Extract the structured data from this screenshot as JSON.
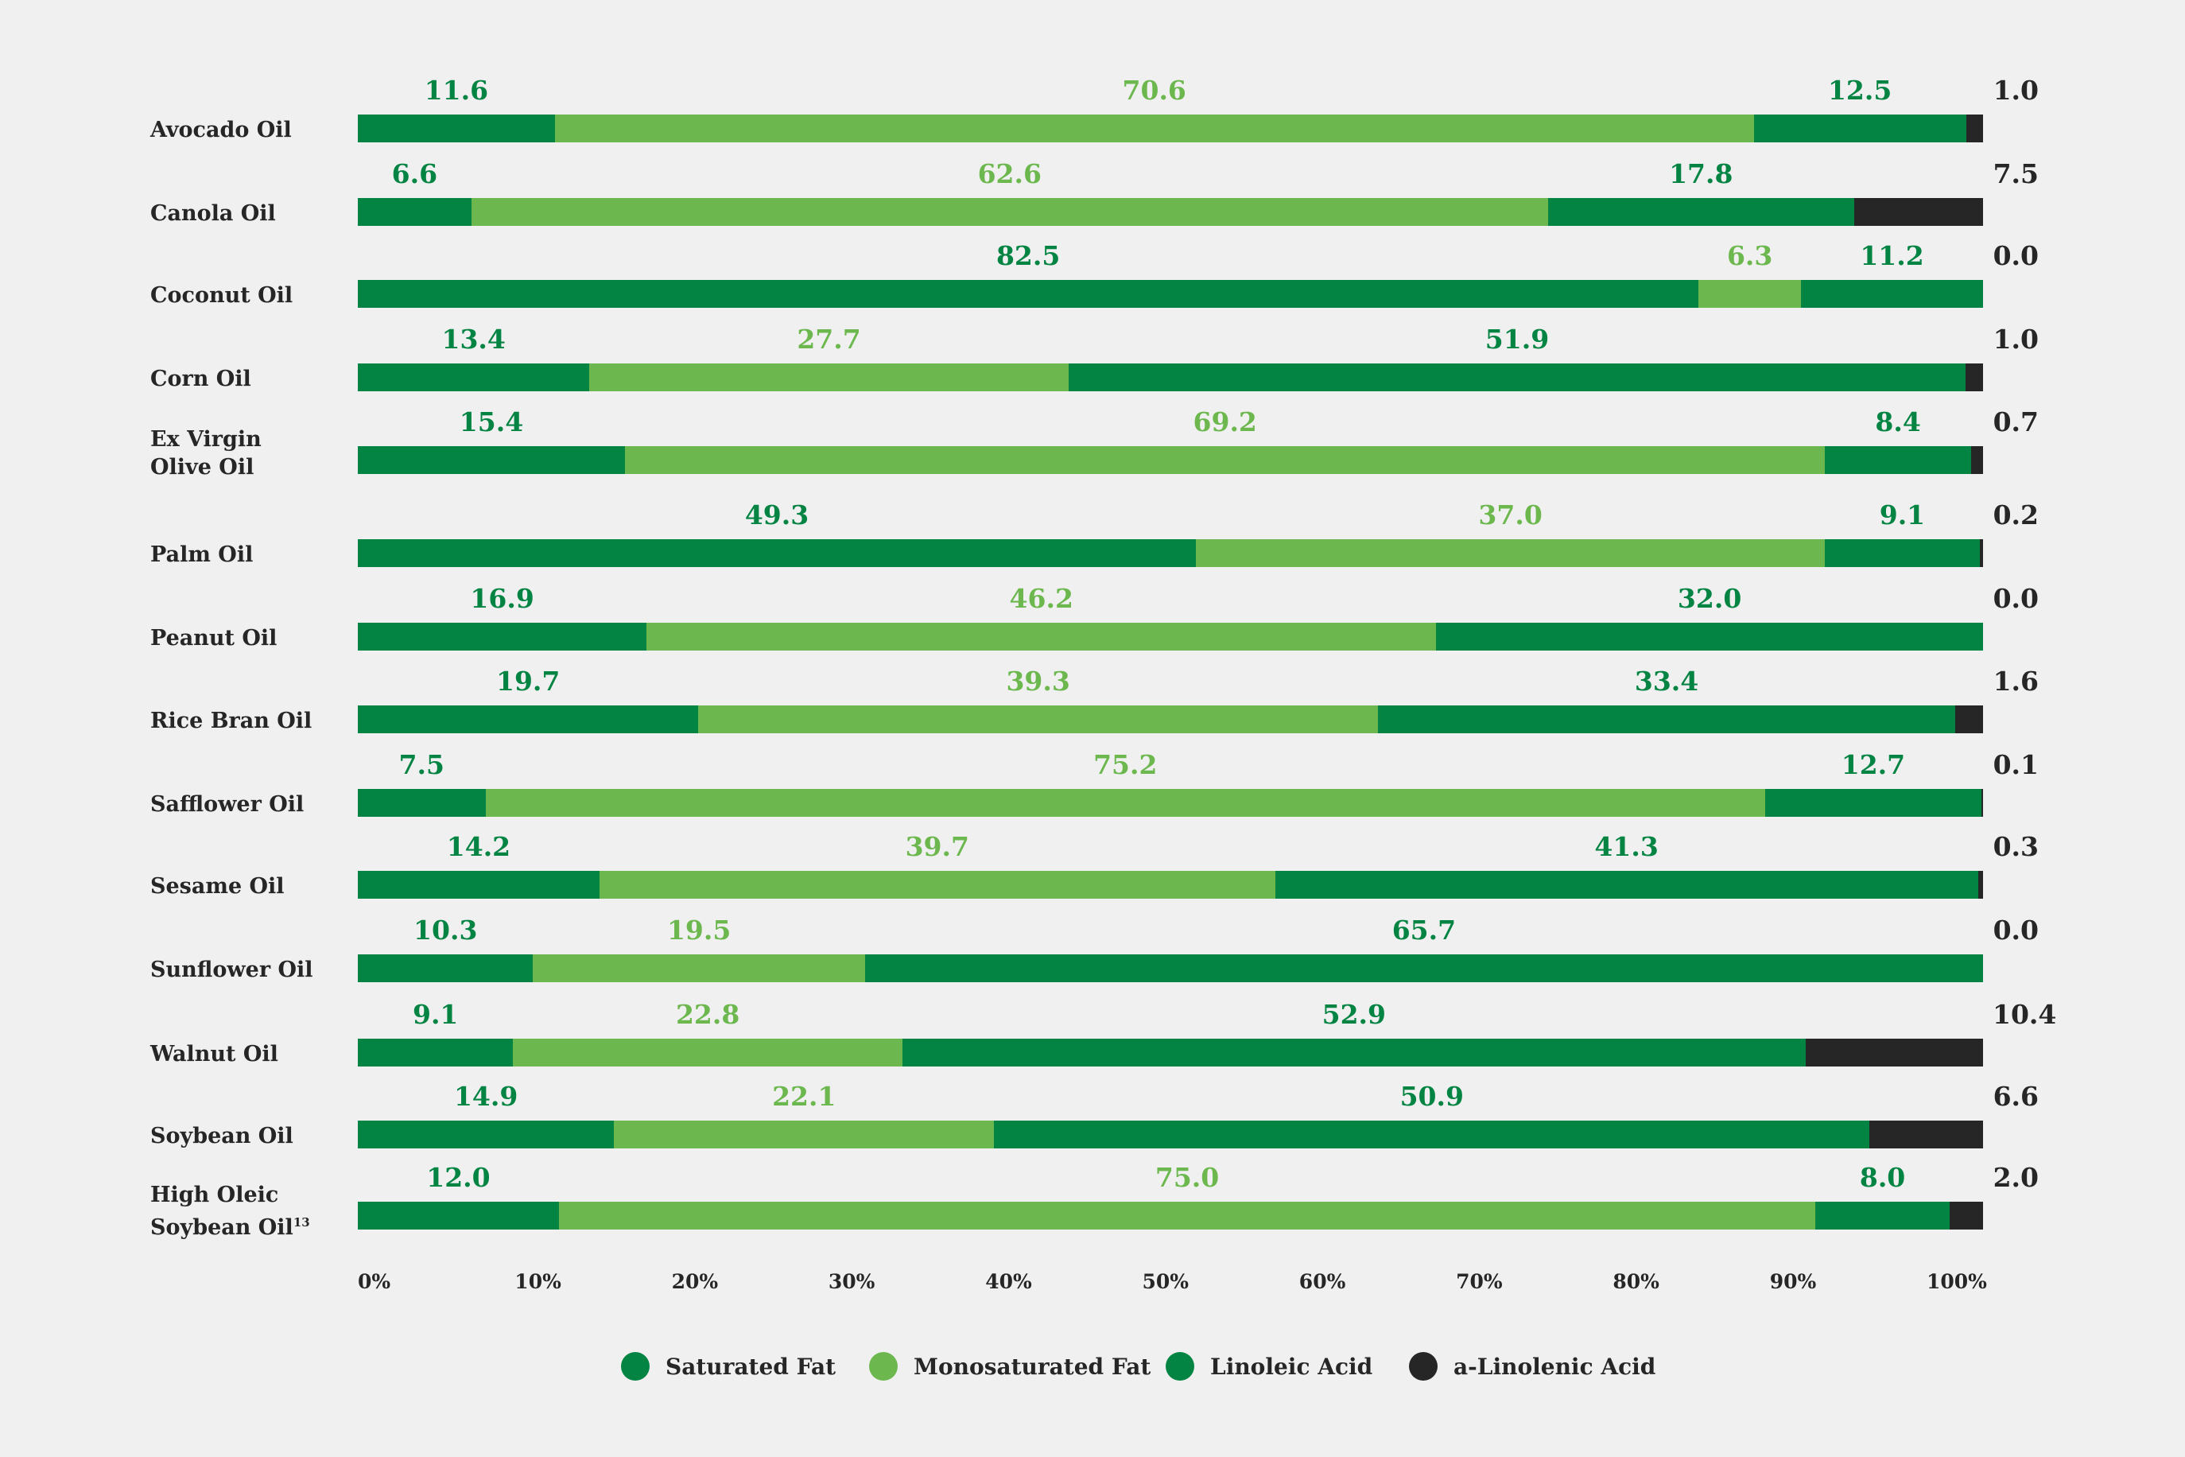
{
  "chart_data": {
    "type": "bar",
    "orientation": "horizontal-stacked-100",
    "title": "",
    "xlabel": "",
    "ylabel": "",
    "xlim": [
      0,
      100
    ],
    "x_ticks": [
      "0%",
      "10%",
      "20%",
      "30%",
      "40%",
      "50%",
      "60%",
      "70%",
      "80%",
      "90%",
      "100%"
    ],
    "legend_position": "bottom",
    "categories": [
      {
        "label": "Avocado Oil"
      },
      {
        "label": "Canola Oil"
      },
      {
        "label": "Coconut Oil"
      },
      {
        "label": "Corn Oil"
      },
      {
        "label": "Ex Virgin",
        "label2": "Olive Oil"
      },
      {
        "label": "Palm Oil"
      },
      {
        "label": "Peanut Oil"
      },
      {
        "label": "Rice Bran Oil"
      },
      {
        "label": "Safflower Oil"
      },
      {
        "label": "Sesame Oil"
      },
      {
        "label": "Sunflower Oil"
      },
      {
        "label": "Walnut Oil"
      },
      {
        "label": "Soybean Oil"
      },
      {
        "label": "High Oleic",
        "label2": "Soybean Oil",
        "footnote": "13"
      }
    ],
    "series": [
      {
        "name": "Saturated Fat",
        "color": "#038443",
        "label_color": "#038443",
        "values": [
          11.6,
          6.6,
          82.5,
          13.4,
          15.4,
          49.3,
          16.9,
          19.7,
          7.5,
          14.2,
          10.3,
          9.1,
          14.9,
          12.0
        ],
        "labels": [
          "11.6",
          "6.6",
          "82.5",
          "13.4",
          "15.4",
          "49.3",
          "16.9",
          "19.7",
          "7.5",
          "14.2",
          "10.3",
          "9.1",
          "14.9",
          "12.0"
        ]
      },
      {
        "name": "Monosaturated Fat",
        "color": "#6cb84e",
        "label_color": "#6cb84e",
        "values": [
          70.6,
          62.6,
          6.3,
          27.7,
          69.2,
          37.0,
          46.2,
          39.3,
          75.2,
          39.7,
          19.5,
          22.8,
          22.1,
          75.0
        ],
        "labels": [
          "70.6",
          "62.6",
          "6.3",
          "27.7",
          "69.2",
          "37.0",
          "46.2",
          "39.3",
          "75.2",
          "39.7",
          "19.5",
          "22.8",
          "22.1",
          "75.0"
        ]
      },
      {
        "name": "Linoleic Acid",
        "color": "#038443",
        "label_color": "#038443",
        "values": [
          12.5,
          17.8,
          11.2,
          51.9,
          8.4,
          9.1,
          32.0,
          33.4,
          12.7,
          41.3,
          65.7,
          52.9,
          50.9,
          8.0
        ],
        "labels": [
          "12.5",
          "17.8",
          "11.2",
          "51.9",
          "8.4",
          "9.1",
          "32.0",
          "33.4",
          "12.7",
          "41.3",
          "65.7",
          "52.9",
          "50.9",
          "8.0"
        ]
      },
      {
        "name": "a-Linolenic Acid",
        "color": "#262626",
        "label_color": "#262626",
        "values": [
          1.0,
          7.5,
          0.0,
          1.0,
          0.7,
          0.2,
          0.0,
          1.6,
          0.1,
          0.3,
          0.0,
          10.4,
          6.6,
          2.0
        ],
        "labels": [
          "1.0",
          "7.5",
          "0.0",
          "1.0",
          "0.7",
          "0.2",
          "0.0",
          "1.6",
          "0.1",
          "0.3",
          "0.0",
          "10.4",
          "6.6",
          "2.0"
        ]
      }
    ]
  }
}
